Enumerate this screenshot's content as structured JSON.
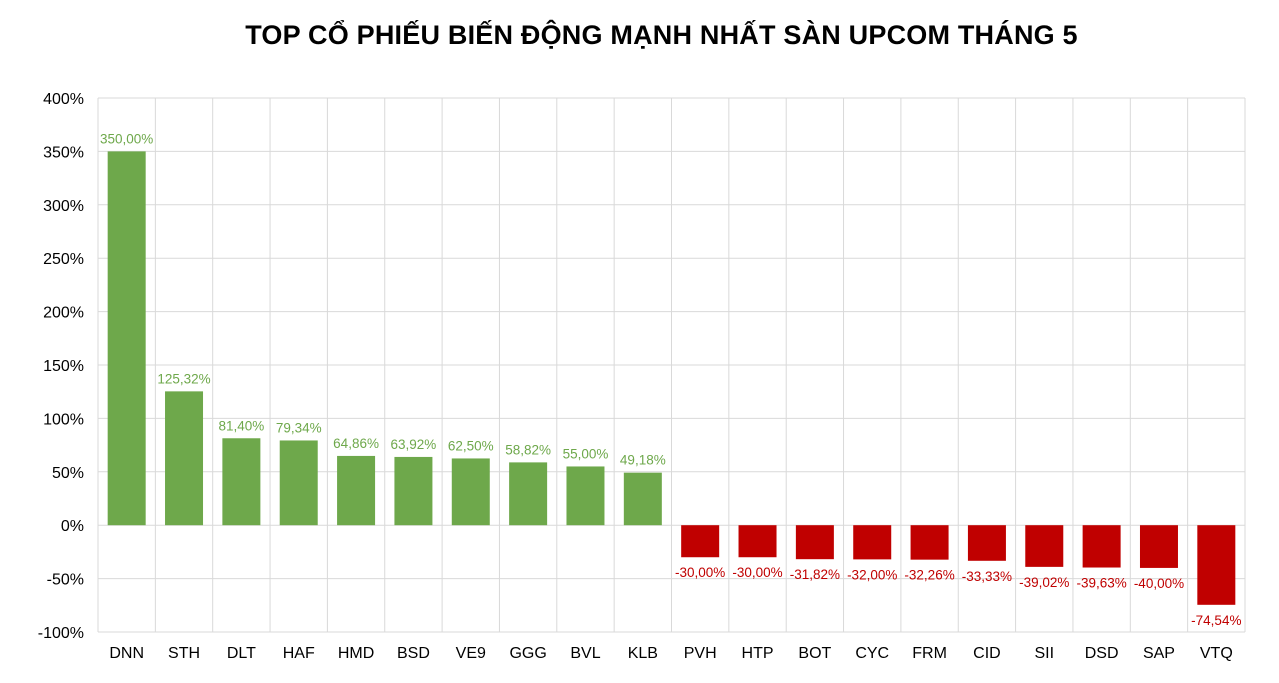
{
  "chart_data": {
    "type": "bar",
    "title": "TOP CỔ PHIẾU BIẾN ĐỘNG MẠNH NHẤT SÀN UPCOM THÁNG 5",
    "xlabel": "",
    "ylabel": "",
    "categories": [
      "DNN",
      "STH",
      "DLT",
      "HAF",
      "HMD",
      "BSD",
      "VE9",
      "GGG",
      "BVL",
      "KLB",
      "PVH",
      "HTP",
      "BOT",
      "CYC",
      "FRM",
      "CID",
      "SII",
      "DSD",
      "SAP",
      "VTQ"
    ],
    "values": [
      350.0,
      125.32,
      81.4,
      79.34,
      64.86,
      63.92,
      62.5,
      58.82,
      55.0,
      49.18,
      -30.0,
      -30.0,
      -31.82,
      -32.0,
      -32.26,
      -33.33,
      -39.02,
      -39.63,
      -40.0,
      -74.54
    ],
    "data_labels": [
      "350,00%",
      "125,32%",
      "81,40%",
      "79,34%",
      "64,86%",
      "63,92%",
      "62,50%",
      "58,82%",
      "55,00%",
      "49,18%",
      "-30,00%",
      "-30,00%",
      "-31,82%",
      "-32,00%",
      "-32,26%",
      "-33,33%",
      "-39,02%",
      "-39,63%",
      "-40,00%",
      "-74,54%"
    ],
    "ylim": [
      -100,
      400
    ],
    "yticks": [
      400,
      350,
      300,
      250,
      200,
      150,
      100,
      50,
      0,
      -50,
      -100
    ],
    "ytick_labels": [
      "400%",
      "350%",
      "300%",
      "250%",
      "200%",
      "150%",
      "100%",
      "50%",
      "0%",
      "-50%",
      "-100%"
    ],
    "grid": true,
    "legend": "none",
    "colors": {
      "positive_bar": "#6ea84b",
      "negative_bar": "#c00000",
      "positive_label": "#6ea84b",
      "negative_label": "#c00000",
      "grid": "#d9d9d9",
      "axis_text": "#000000"
    }
  }
}
